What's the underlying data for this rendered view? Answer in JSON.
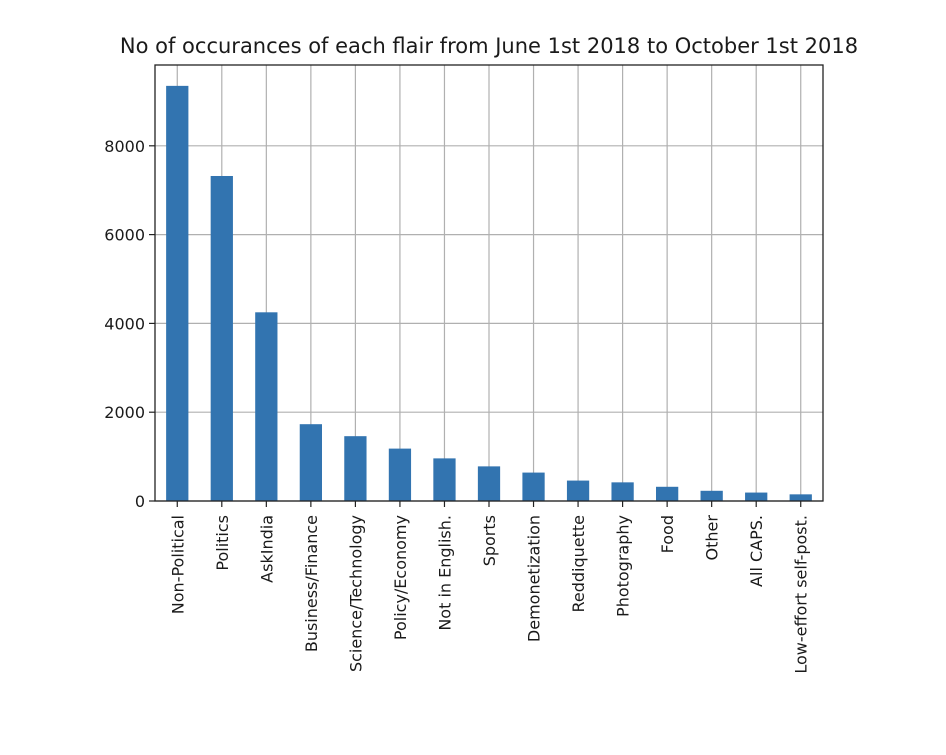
{
  "colors": {
    "bar": "#3274b0",
    "grid": "#b0b0b0",
    "frame": "#222222"
  },
  "chart_data": {
    "type": "bar",
    "title": "No of occurances of each flair from June 1st 2018 to October 1st 2018",
    "xlabel": "",
    "ylabel": "",
    "categories": [
      "Non-Political",
      "Politics",
      "AskIndia",
      "Business/Finance",
      "Science/Technology",
      "Policy/Economy",
      "Not in English.",
      "Sports",
      "Demonetization",
      "Reddiquette",
      "Photography",
      "Food",
      "Other",
      "All CAPS.",
      "Low-effort self-post."
    ],
    "values": [
      9350,
      7320,
      4250,
      1730,
      1460,
      1180,
      960,
      780,
      640,
      460,
      420,
      320,
      230,
      190,
      150
    ],
    "yticks": [
      0,
      2000,
      4000,
      6000,
      8000
    ],
    "ytick_labels": [
      "0",
      "2000",
      "4000",
      "6000",
      "8000"
    ],
    "ylim": [
      0,
      9820
    ],
    "grid": true,
    "legend": "none"
  }
}
